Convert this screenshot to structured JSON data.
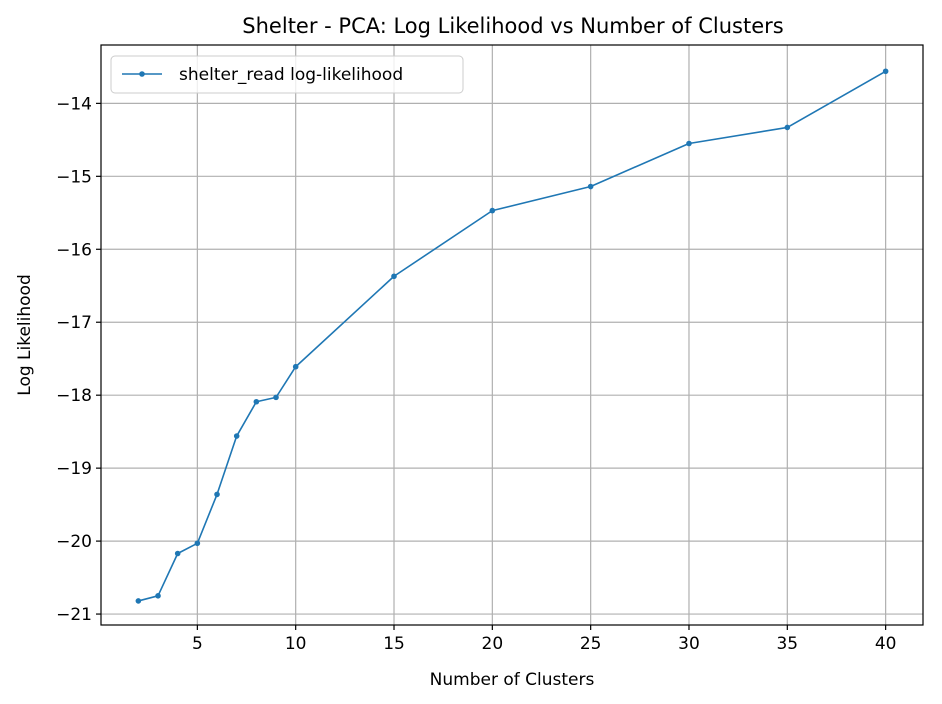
{
  "chart_data": {
    "type": "line",
    "title": "Shelter - PCA: Log Likelihood vs Number of Clusters",
    "xlabel": "Number of Clusters",
    "ylabel": "Log Likelihood",
    "xlim": [
      0.1,
      41.9
    ],
    "ylim": [
      -21.15,
      -13.2
    ],
    "x_ticks": [
      5,
      10,
      15,
      20,
      25,
      30,
      35,
      40
    ],
    "x_tick_labels": [
      "5",
      "10",
      "15",
      "20",
      "25",
      "30",
      "35",
      "40"
    ],
    "y_ticks": [
      -21,
      -20,
      -19,
      -18,
      -17,
      -16,
      -15,
      -14
    ],
    "y_tick_labels": [
      "−21",
      "−20",
      "−19",
      "−18",
      "−17",
      "−16",
      "−15",
      "−14"
    ],
    "grid": true,
    "legend_position": "top-left",
    "series": [
      {
        "name": "shelter_read log-likelihood",
        "color": "#1f77b4",
        "x": [
          2,
          3,
          4,
          5,
          6,
          7,
          8,
          9,
          10,
          15,
          20,
          25,
          30,
          35,
          40
        ],
        "y": [
          -20.82,
          -20.75,
          -20.17,
          -20.03,
          -19.36,
          -18.56,
          -18.09,
          -18.03,
          -17.61,
          -16.37,
          -15.47,
          -15.14,
          -14.55,
          -14.33,
          -13.56
        ]
      }
    ]
  }
}
